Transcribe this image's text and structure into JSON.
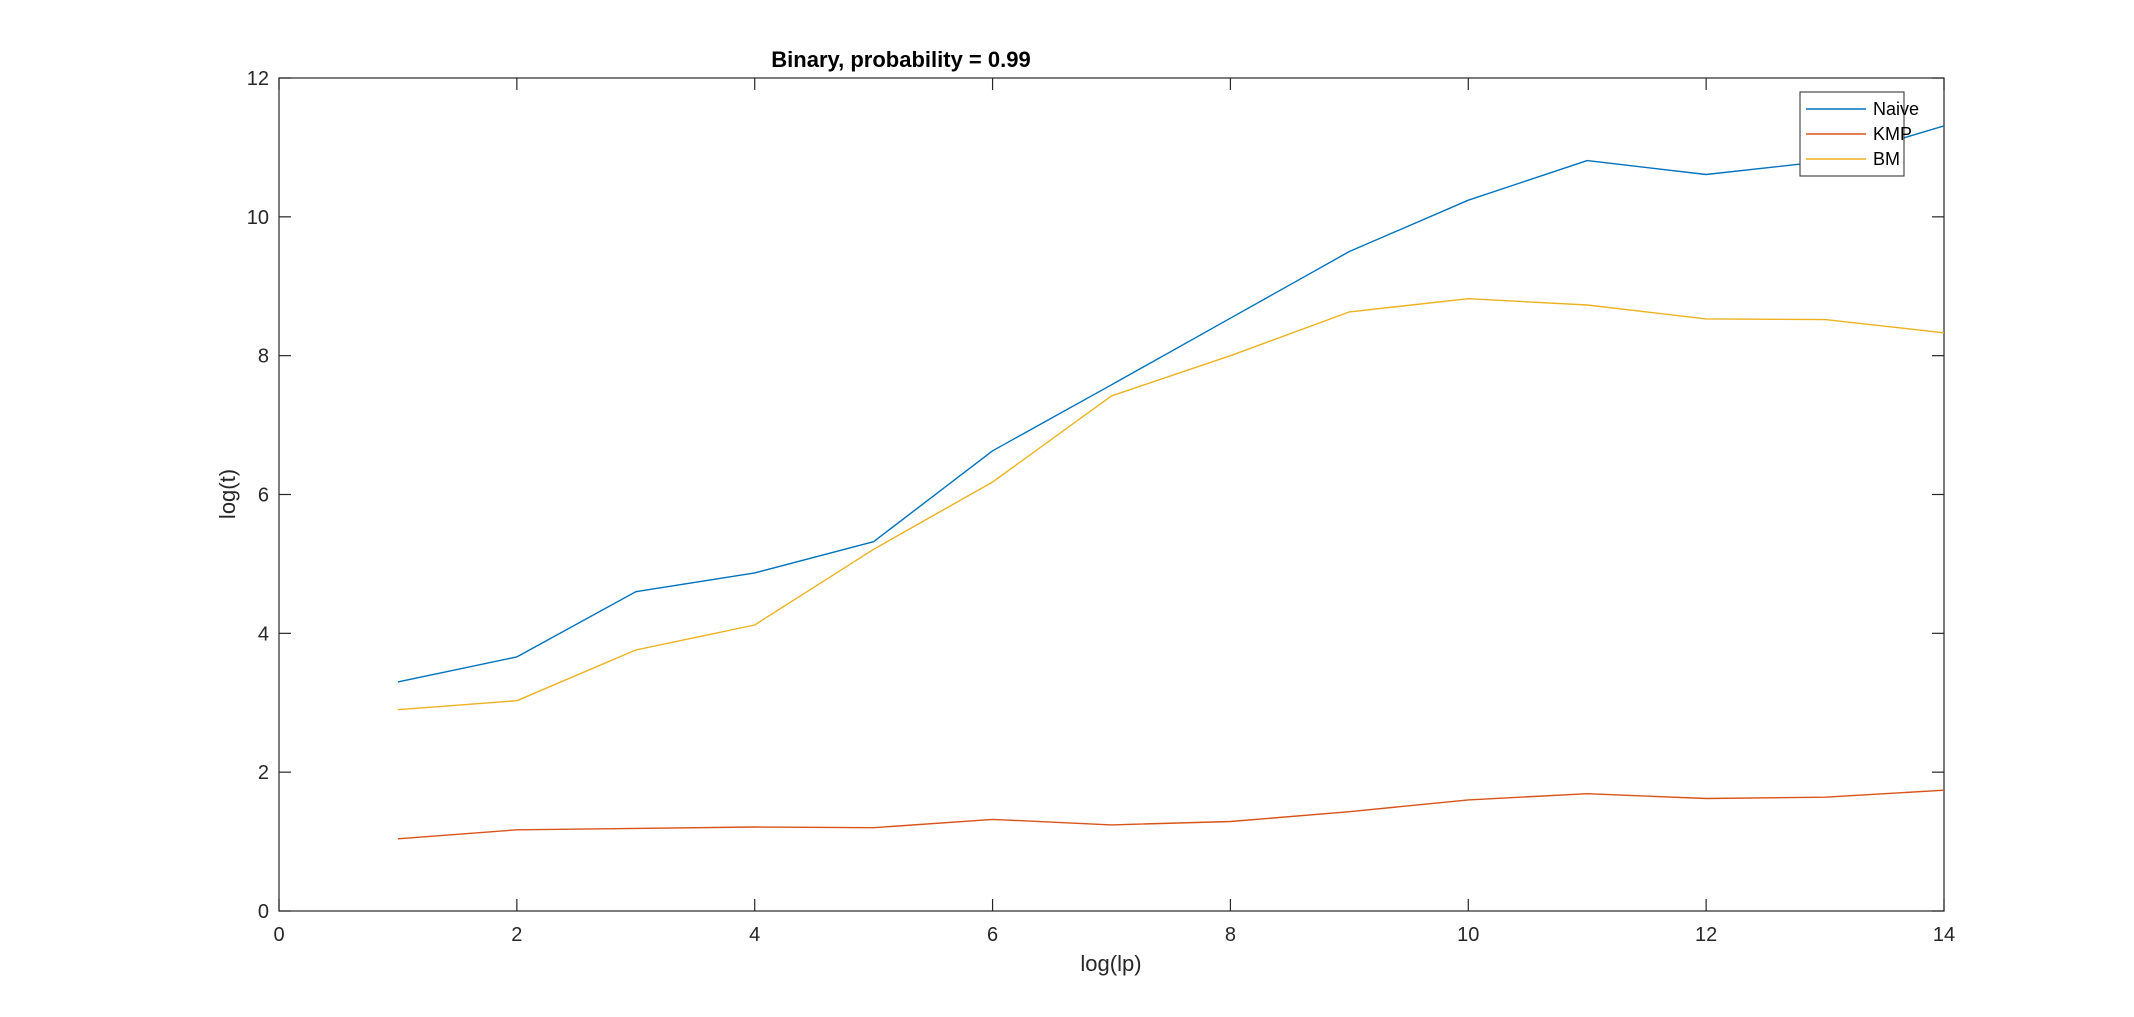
{
  "chart_data": {
    "type": "line",
    "title": "Binary, probability = 0.99",
    "xlabel": "log(lp)",
    "ylabel": "log(t)",
    "xlim": [
      0,
      14
    ],
    "ylim": [
      0,
      12
    ],
    "xticks": [
      0,
      2,
      4,
      6,
      8,
      10,
      12,
      14
    ],
    "yticks": [
      0,
      2,
      4,
      6,
      8,
      10,
      12
    ],
    "x": [
      1,
      2,
      3,
      4,
      5,
      6,
      7,
      8,
      9,
      10,
      11,
      12,
      13,
      14
    ],
    "series": [
      {
        "name": "Naive",
        "color": "#0072BD",
        "values": [
          3.3,
          3.66,
          4.6,
          4.87,
          5.32,
          6.63,
          7.58,
          8.54,
          9.5,
          10.24,
          10.81,
          10.61,
          10.8,
          11.31
        ]
      },
      {
        "name": "KMP",
        "color": "#D95319",
        "values": [
          1.04,
          1.17,
          1.19,
          1.21,
          1.2,
          1.32,
          1.24,
          1.29,
          1.43,
          1.6,
          1.69,
          1.62,
          1.64,
          1.74
        ]
      },
      {
        "name": "BM",
        "color": "#EDB120",
        "values": [
          2.9,
          3.03,
          3.76,
          4.12,
          5.21,
          6.18,
          7.42,
          8.0,
          8.63,
          8.82,
          8.73,
          8.53,
          8.52,
          8.33
        ]
      }
    ],
    "grid": false,
    "legend_position": "top-right"
  }
}
